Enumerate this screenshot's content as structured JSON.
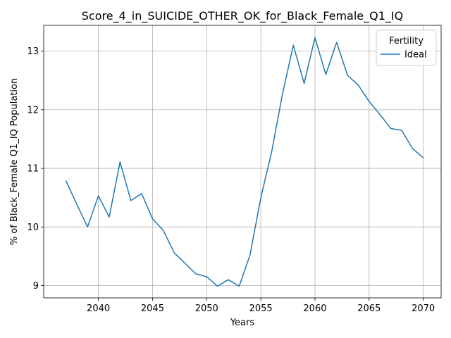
{
  "chart_data": {
    "type": "line",
    "title": "Score_4_in_SUICIDE_OTHER_OK_for_Black_Female_Q1_IQ",
    "xlabel": "Years",
    "ylabel": "% of Black_Female Q1_IQ Population",
    "xlim": [
      2034.95,
      2071.65
    ],
    "ylim": [
      8.79,
      13.44
    ],
    "xticks": [
      2040,
      2045,
      2050,
      2055,
      2060,
      2065,
      2070
    ],
    "yticks": [
      9,
      10,
      11,
      12,
      13
    ],
    "grid": true,
    "legend": {
      "title": "Fertility",
      "placement": "top-right"
    },
    "series": [
      {
        "name": "Ideal",
        "color": "#1f77b4",
        "x": [
          2037,
          2038,
          2039,
          2040,
          2041,
          2042,
          2043,
          2044,
          2045,
          2046,
          2047,
          2048,
          2049,
          2050,
          2051,
          2052,
          2053,
          2054,
          2055,
          2056,
          2057,
          2058,
          2059,
          2060,
          2061,
          2062,
          2063,
          2064,
          2065,
          2066,
          2067,
          2068,
          2069,
          2070
        ],
        "values": [
          10.79,
          10.39,
          10.0,
          10.53,
          10.17,
          11.11,
          10.45,
          10.57,
          10.14,
          9.94,
          9.56,
          9.38,
          9.2,
          9.15,
          8.99,
          9.1,
          8.99,
          9.52,
          10.5,
          11.28,
          12.27,
          13.1,
          12.45,
          13.23,
          12.6,
          13.15,
          12.59,
          12.42,
          12.14,
          11.92,
          11.68,
          11.65,
          11.34,
          11.18
        ]
      }
    ]
  }
}
